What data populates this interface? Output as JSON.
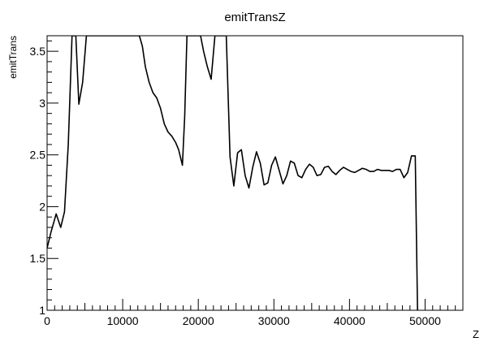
{
  "chart_data": {
    "type": "line",
    "title": "emitTransZ",
    "xlabel": "Z",
    "ylabel": "emitTrans",
    "xlim": [
      0,
      55000
    ],
    "ylim": [
      1,
      3.65
    ],
    "x_ticks": [
      0,
      10000,
      20000,
      30000,
      40000,
      50000
    ],
    "x_tick_labels": [
      "0",
      "10000",
      "20000",
      "30000",
      "40000",
      "50000"
    ],
    "y_ticks": [
      1,
      1.5,
      2,
      2.5,
      3,
      3.5
    ],
    "y_tick_labels": [
      "1",
      "1.5",
      "2",
      "2.5",
      "3",
      "3.5"
    ],
    "grid": false,
    "legend": "none",
    "line_color": "#000000",
    "series": [
      {
        "x": [
          0,
          500,
          1200,
          1800,
          2300,
          2800,
          3300,
          3800,
          4200,
          4700,
          5200,
          12200,
          12600,
          13000,
          13500,
          14000,
          14500,
          15000,
          15500,
          16000,
          16500,
          17000,
          17400,
          17900,
          18200,
          18500,
          20300,
          20700,
          21200,
          21700,
          22200,
          23700,
          24200,
          24700,
          25200,
          25700,
          26200,
          26700,
          27200,
          27700,
          28200,
          28700,
          29200,
          29700,
          30200,
          30700,
          31200,
          31700,
          32200,
          32700,
          33200,
          33700,
          34200,
          34700,
          35200,
          35700,
          36200,
          36700,
          37200,
          37700,
          38200,
          38700,
          39200,
          39700,
          40200,
          40700,
          41200,
          41700,
          42200,
          42700,
          43200,
          43700,
          44200,
          44700,
          45200,
          45700,
          46200,
          46700,
          47200,
          47700,
          48200,
          48700,
          49000,
          49200
        ],
        "y": [
          1.6,
          1.75,
          1.93,
          1.8,
          1.95,
          2.6,
          3.65,
          3.65,
          2.99,
          3.2,
          3.65,
          3.65,
          3.55,
          3.35,
          3.2,
          3.1,
          3.05,
          2.95,
          2.8,
          2.72,
          2.68,
          2.62,
          2.55,
          2.4,
          2.87,
          3.65,
          3.65,
          3.5,
          3.35,
          3.23,
          3.65,
          3.65,
          2.48,
          2.2,
          2.52,
          2.55,
          2.3,
          2.18,
          2.38,
          2.53,
          2.42,
          2.21,
          2.23,
          2.4,
          2.48,
          2.35,
          2.22,
          2.3,
          2.44,
          2.42,
          2.3,
          2.28,
          2.36,
          2.41,
          2.38,
          2.3,
          2.31,
          2.38,
          2.39,
          2.34,
          2.31,
          2.35,
          2.38,
          2.36,
          2.34,
          2.33,
          2.35,
          2.37,
          2.36,
          2.34,
          2.34,
          2.36,
          2.35,
          2.35,
          2.35,
          2.34,
          2.36,
          2.36,
          2.28,
          2.33,
          2.49,
          2.49,
          1.0,
          0.8
        ]
      }
    ]
  }
}
